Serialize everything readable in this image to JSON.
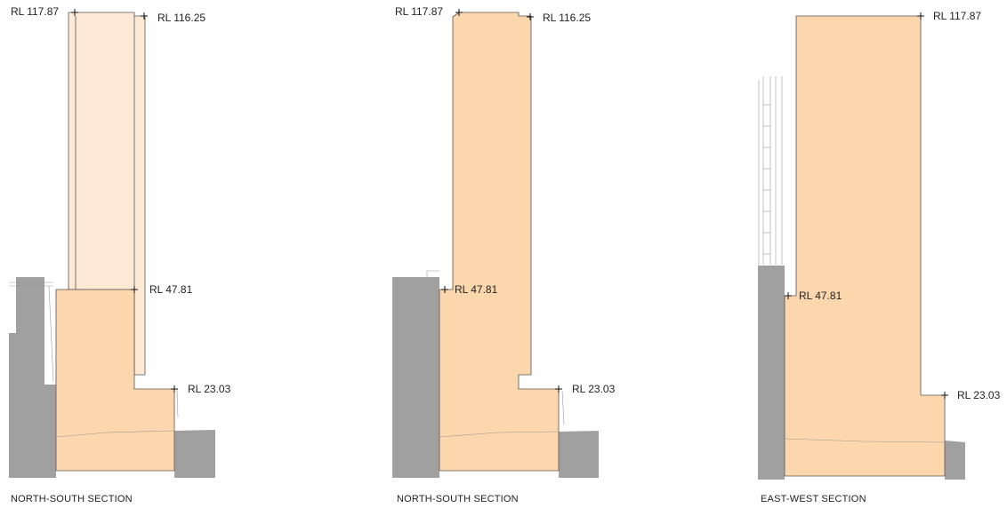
{
  "colors": {
    "building": "#fcd6ac",
    "building_light": "#fde9d6",
    "ground": "#a0a0a0",
    "outline": "#555555"
  },
  "sections": [
    {
      "caption": "NORTH-SOUTH SECTION",
      "levels": [
        "RL 117.87",
        "RL 116.25",
        "RL 47.81",
        "RL 23.03"
      ]
    },
    {
      "caption": "NORTH-SOUTH SECTION",
      "levels": [
        "RL 117.87",
        "RL 116.25",
        "RL 47.81",
        "RL 23.03"
      ]
    },
    {
      "caption": "EAST-WEST SECTION",
      "levels": [
        "RL 117.87",
        "RL 47.81",
        "RL 23.03"
      ]
    }
  ]
}
